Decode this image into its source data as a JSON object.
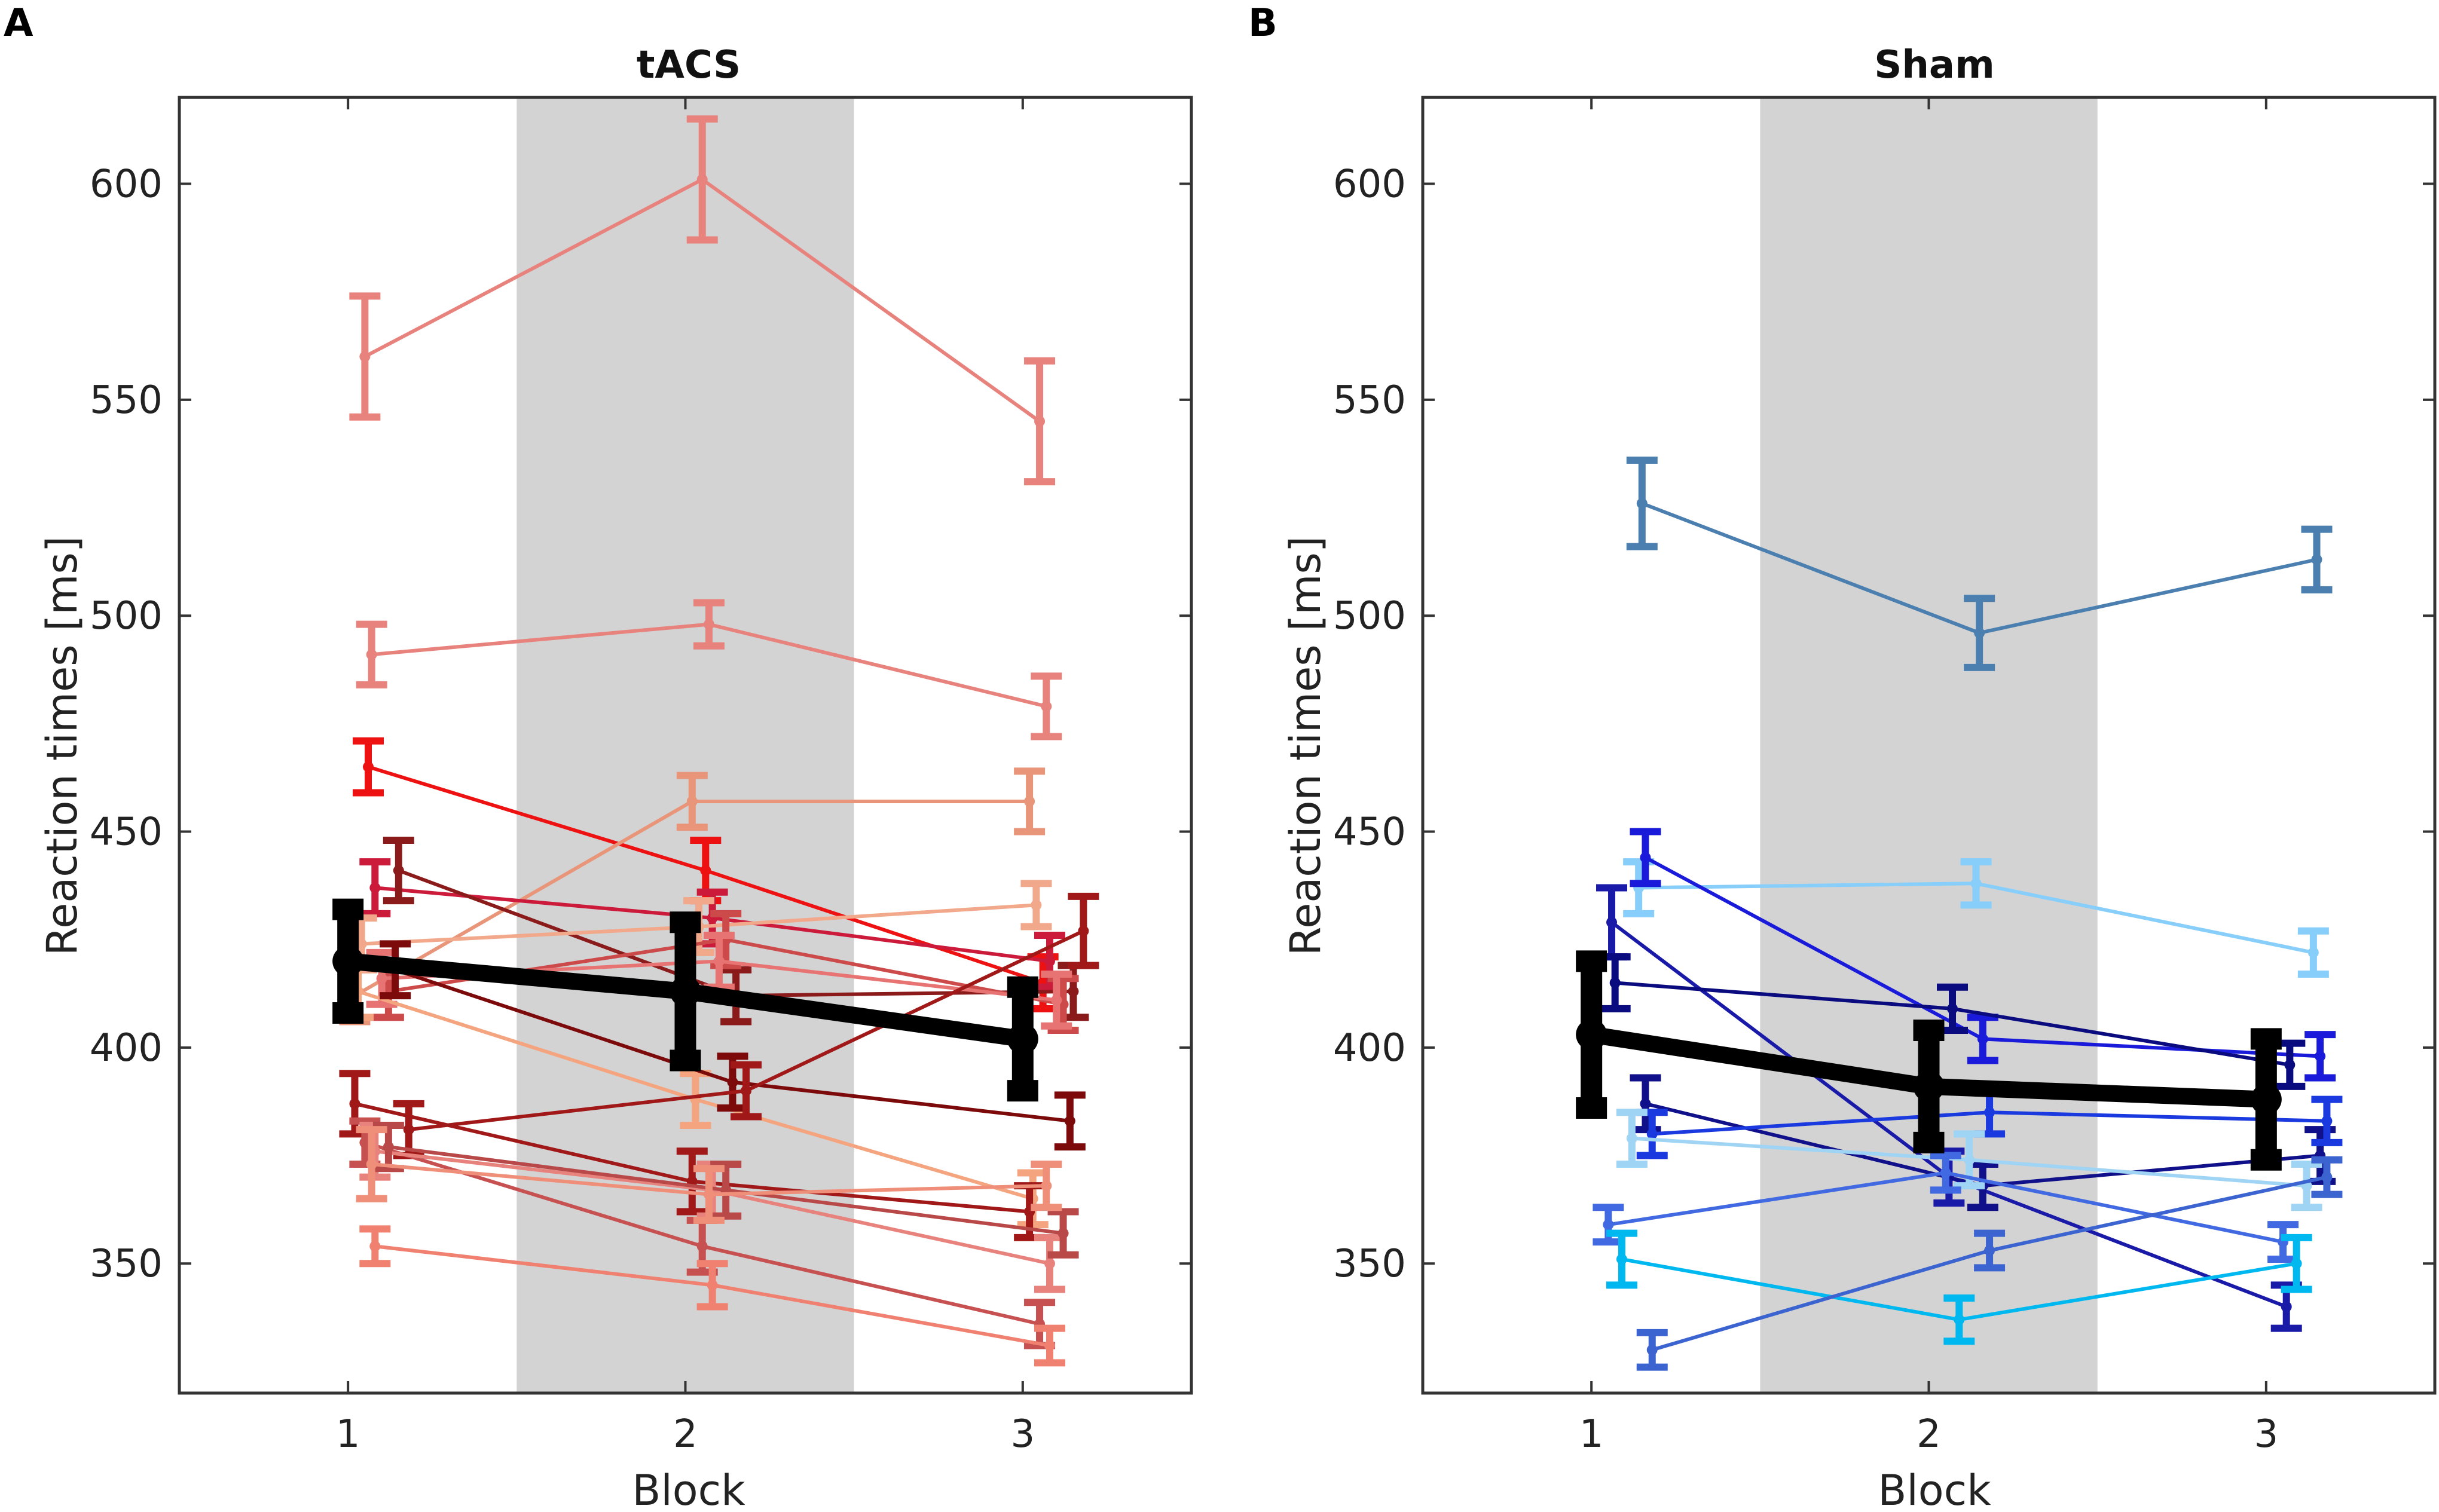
{
  "figure_type": "Reaction times across blocks for tACS and Sham groups",
  "colors": {
    "shaded_block": "#d3d3d3",
    "group_mean": "#000000",
    "axis": "#333333"
  },
  "chart_data": [
    {
      "panel": "A",
      "type": "line",
      "title": "tACS",
      "xlabel": "Block",
      "ylabel": "Reaction times [ms]",
      "x_ticks": [
        "1",
        "2",
        "3"
      ],
      "y_ticks": [
        "350",
        "400",
        "450",
        "500",
        "550",
        "600"
      ],
      "xlim": [
        0.5,
        3.5
      ],
      "ylim": [
        320,
        620
      ],
      "shaded_x_range": [
        1.5,
        2.5
      ],
      "group_mean": {
        "name": "mean",
        "values": [
          420,
          413,
          402
        ],
        "errors": [
          12,
          16,
          12
        ]
      },
      "series": [
        {
          "color": "#e8827d",
          "offset": 0.05,
          "values": [
            560,
            601,
            545
          ],
          "errors": [
            14,
            14,
            14
          ]
        },
        {
          "color": "#e8827d",
          "offset": 0.07,
          "values": [
            491,
            498,
            479
          ],
          "errors": [
            7,
            5,
            7
          ]
        },
        {
          "color": "#ee1111",
          "offset": 0.06,
          "values": [
            465,
            441,
            415
          ],
          "errors": [
            6,
            7,
            6
          ]
        },
        {
          "color": "#e8957a",
          "offset": 0.02,
          "values": [
            412,
            457,
            457
          ],
          "errors": [
            6,
            6,
            7
          ]
        },
        {
          "color": "#cc1a3a",
          "offset": 0.08,
          "values": [
            437,
            430,
            420
          ],
          "errors": [
            6,
            6,
            6
          ]
        },
        {
          "color": "#8b1a1a",
          "offset": 0.15,
          "values": [
            441,
            412,
            413
          ],
          "errors": [
            7,
            6,
            6
          ]
        },
        {
          "color": "#f2a88a",
          "offset": 0.04,
          "values": [
            424,
            428,
            433
          ],
          "errors": [
            6,
            6,
            5
          ]
        },
        {
          "color": "#cd4a4a",
          "offset": 0.12,
          "values": [
            413,
            425,
            410
          ],
          "errors": [
            6,
            6,
            6
          ]
        },
        {
          "color": "#e87373",
          "offset": 0.1,
          "values": [
            416,
            420,
            411
          ],
          "errors": [
            6,
            6,
            6
          ]
        },
        {
          "color": "#f4a57f",
          "offset": 0.03,
          "values": [
            413,
            388,
            365
          ],
          "errors": [
            6,
            6,
            6
          ]
        },
        {
          "color": "#7d0a0a",
          "offset": 0.14,
          "values": [
            418,
            392,
            383
          ],
          "errors": [
            6,
            6,
            6
          ]
        },
        {
          "color": "#a01818",
          "offset": 0.02,
          "values": [
            387,
            369,
            362
          ],
          "errors": [
            7,
            7,
            6
          ]
        },
        {
          "color": "#a01818",
          "offset": 0.18,
          "values": [
            381,
            390,
            427
          ],
          "errors": [
            6,
            6,
            8
          ]
        },
        {
          "color": "#c75050",
          "offset": 0.05,
          "values": [
            378,
            354,
            336
          ],
          "errors": [
            5,
            6,
            5
          ]
        },
        {
          "color": "#e8827d",
          "offset": 0.08,
          "values": [
            376,
            367,
            350
          ],
          "errors": [
            6,
            6,
            6
          ]
        },
        {
          "color": "#b94848",
          "offset": 0.12,
          "values": [
            377,
            367,
            357
          ],
          "errors": [
            5,
            6,
            5
          ]
        },
        {
          "color": "#ef8f7a",
          "offset": 0.07,
          "values": [
            373,
            366,
            368
          ],
          "errors": [
            8,
            6,
            5
          ]
        },
        {
          "color": "#f08070",
          "offset": 0.08,
          "values": [
            354,
            345,
            331
          ],
          "errors": [
            4,
            5,
            4
          ]
        }
      ]
    },
    {
      "panel": "B",
      "type": "line",
      "title": "Sham",
      "xlabel": "Block",
      "ylabel": "Reaction times [ms]",
      "x_ticks": [
        "1",
        "2",
        "3"
      ],
      "y_ticks": [
        "350",
        "400",
        "450",
        "500",
        "550",
        "600"
      ],
      "xlim": [
        0.5,
        3.5
      ],
      "ylim": [
        320,
        620
      ],
      "shaded_x_range": [
        1.5,
        2.5
      ],
      "group_mean": {
        "name": "mean",
        "values": [
          403,
          391,
          388
        ],
        "errors": [
          17,
          13,
          14
        ]
      },
      "series": [
        {
          "color": "#4a7fb0",
          "offset": 0.15,
          "values": [
            526,
            496,
            513
          ],
          "errors": [
            10,
            8,
            7
          ]
        },
        {
          "color": "#87cefa",
          "offset": 0.14,
          "values": [
            437,
            438,
            422
          ],
          "errors": [
            6,
            5,
            5
          ]
        },
        {
          "color": "#1a1adb",
          "offset": 0.16,
          "values": [
            444,
            402,
            398
          ],
          "errors": [
            6,
            5,
            5
          ]
        },
        {
          "color": "#1a1aa8",
          "offset": 0.06,
          "values": [
            429,
            370,
            340
          ],
          "errors": [
            8,
            6,
            5
          ]
        },
        {
          "color": "#0b0b80",
          "offset": 0.07,
          "values": [
            415,
            409,
            396
          ],
          "errors": [
            6,
            5,
            5
          ]
        },
        {
          "color": "#10108a",
          "offset": 0.16,
          "values": [
            387,
            368,
            375
          ],
          "errors": [
            6,
            5,
            6
          ]
        },
        {
          "color": "#1a3ae0",
          "offset": 0.18,
          "values": [
            380,
            385,
            383
          ],
          "errors": [
            5,
            5,
            5
          ]
        },
        {
          "color": "#a0d4f4",
          "offset": 0.12,
          "values": [
            379,
            374,
            368
          ],
          "errors": [
            6,
            6,
            5
          ]
        },
        {
          "color": "#4169e1",
          "offset": 0.05,
          "values": [
            359,
            371,
            355
          ],
          "errors": [
            4,
            4,
            4
          ]
        },
        {
          "color": "#00b8f0",
          "offset": 0.09,
          "values": [
            351,
            337,
            350
          ],
          "errors": [
            6,
            5,
            6
          ]
        },
        {
          "color": "#3c64d0",
          "offset": 0.18,
          "values": [
            330,
            353,
            370
          ],
          "errors": [
            4,
            4,
            4
          ]
        }
      ]
    }
  ]
}
